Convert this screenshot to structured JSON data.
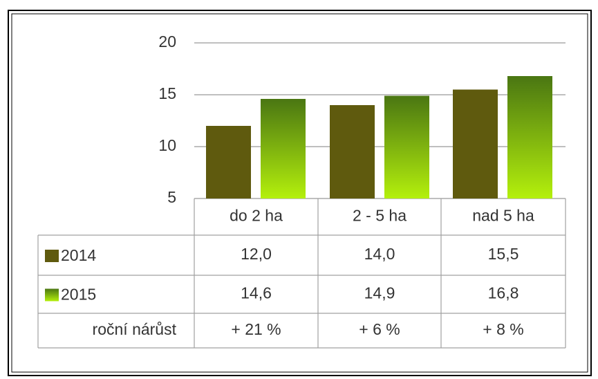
{
  "chart_data": {
    "type": "bar",
    "categories": [
      "do 2 ha",
      "2 - 5 ha",
      "nad 5 ha"
    ],
    "series": [
      {
        "name": "2014",
        "color": "#5f5a0e",
        "values": [
          12,
          14,
          15.5
        ],
        "value_labels": [
          "12,0",
          "14,0",
          "15,5"
        ]
      },
      {
        "name": "2015",
        "color": [
          "#4a7612",
          "#b4f00c"
        ],
        "values": [
          14.6,
          14.9,
          16.8
        ],
        "value_labels": [
          "14,6",
          "14,9",
          "16,8"
        ]
      }
    ],
    "growth": {
      "name": "roční nárůst",
      "values": [
        21,
        6,
        8
      ],
      "value_labels": [
        "+ 21 %",
        "+ 6 %",
        "+ 8 %"
      ]
    },
    "ylim": [
      5,
      20
    ],
    "yticks": [
      5,
      10,
      15,
      20
    ],
    "grid": true
  }
}
